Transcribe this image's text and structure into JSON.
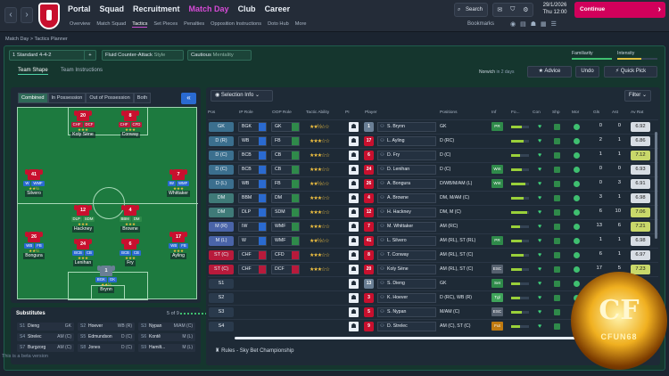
{
  "topbar": {
    "nav": [
      "Portal",
      "Squad",
      "Recruitment",
      "Match Day",
      "Club",
      "Career"
    ],
    "subnav": [
      "Overview",
      "Match Squad",
      "Tactics",
      "Set Pieces",
      "Penalties",
      "Opposition Instructions",
      "Doto Hub",
      "More"
    ],
    "search": "Search",
    "date": "29/1/2026",
    "day": "Thu",
    "time": "12:00",
    "continue": "Continue",
    "bookmarks": "Bookmarks"
  },
  "breadcrumb": "Match Day  >  Tactics Planner",
  "toolbar": {
    "tactic_num": "1",
    "formation": "Standard 4-4-2",
    "style_name": "Fluid Counter-Attack",
    "style_label": "Style",
    "mentality": "Cautious",
    "mentality_label": "Mentality",
    "familiarity": "Familiarity",
    "intensity": "Intensity"
  },
  "tabs": {
    "team_shape": "Team Shape",
    "team_instructions": "Team Instructions",
    "next_opp": "Norwich",
    "next_when": "in 2 days",
    "advice": "Advice",
    "undo": "Undo",
    "quick_pick": "Quick Pick"
  },
  "pitch_tabs": [
    "Combined",
    "In Possession",
    "Out of Possession",
    "Both"
  ],
  "players_pitch": [
    {
      "num": "20",
      "r1": "CHF",
      "r2": "DCF",
      "name": "Koly Sène"
    },
    {
      "num": "8",
      "r1": "CFD",
      "r2": "",
      "name": "Conway"
    },
    {
      "num": "41",
      "r1": "WMF",
      "r2": "",
      "name": "Silvero"
    },
    {
      "num": "7",
      "r1": "WMF",
      "r2": "",
      "name": "Whittaker"
    },
    {
      "num": "12",
      "r1": "DLP",
      "r2": "SDM",
      "name": "Hackney"
    },
    {
      "num": "4",
      "r1": "BBM",
      "r2": "",
      "name": "Browne"
    },
    {
      "num": "26",
      "r1": "WB",
      "r2": "FB",
      "name": "Bongura"
    },
    {
      "num": "24",
      "r1": "BCB",
      "r2": "CB",
      "name": "Lenihan"
    },
    {
      "num": "6",
      "r1": "BCB",
      "r2": "CB",
      "name": "Fry"
    },
    {
      "num": "17",
      "r1": "WB",
      "r2": "FB",
      "name": "Ayling"
    },
    {
      "num": "1",
      "r1": "BGK",
      "r2": "GK",
      "name": "Brynn"
    }
  ],
  "subs": {
    "title": "Substitutes",
    "count": "5 of 9",
    "items": [
      {
        "n": "S1",
        "name": "Dieng",
        "pos": "GK"
      },
      {
        "n": "S2",
        "name": "Hoever",
        "pos": "WB (R)"
      },
      {
        "n": "S3",
        "name": "Nypan",
        "pos": "M/AM (C)"
      },
      {
        "n": "S4",
        "name": "Strelec",
        "pos": "AM (C)"
      },
      {
        "n": "S5",
        "name": "Edmundson",
        "pos": "D (C)"
      },
      {
        "n": "S6",
        "name": "Kontě",
        "pos": "M (L)"
      },
      {
        "n": "S7",
        "name": "Burgzorg",
        "pos": "AM (C)"
      },
      {
        "n": "S8",
        "name": "Jones",
        "pos": "D (C)"
      },
      {
        "n": "S9",
        "name": "Hamilt...",
        "pos": "M (L)"
      }
    ]
  },
  "version": "This is a beta version",
  "selection": {
    "info": "Selection Info",
    "filter": "Filter"
  },
  "columns": [
    "Pos",
    "IP Role",
    "OOP Role",
    "Tactic Ability",
    "PI",
    "Player",
    "Positions",
    "Inf",
    "Fo...",
    "Con",
    "Shp",
    "Mor",
    "Gls",
    "Ast",
    "Av Rat"
  ],
  "rows": [
    {
      "pos": "GK",
      "ip": "BGK",
      "oop": "GK",
      "stars": "★★½☆☆",
      "num": "1",
      "player": "S. Brynn",
      "positions": "GK",
      "inf": "PR",
      "fm": 0.6,
      "gls": "0",
      "ast": "0",
      "avr": "6.92",
      "avc": "#d7dde4"
    },
    {
      "pos": "D (R)",
      "ip": "WB",
      "oop": "FB",
      "stars": "★★★☆☆",
      "num": "17",
      "player": "L. Ayling",
      "positions": "D (RC)",
      "inf": "",
      "fm": 0.7,
      "gls": "2",
      "ast": "1",
      "avr": "6.86",
      "avc": "#d7dde4"
    },
    {
      "pos": "D (C)",
      "ip": "BCB",
      "oop": "CB",
      "stars": "★★★☆☆",
      "num": "6",
      "player": "D. Fry",
      "positions": "D (C)",
      "inf": "",
      "fm": 0.5,
      "gls": "1",
      "ast": "1",
      "avr": "7.12",
      "avc": "#c9d86a"
    },
    {
      "pos": "D (C)",
      "ip": "BCB",
      "oop": "CB",
      "stars": "★★★☆☆",
      "num": "24",
      "player": "D. Lenihan",
      "positions": "D (C)",
      "inf": "Wnt",
      "fm": 0.6,
      "gls": "0",
      "ast": "0",
      "avr": "6.93",
      "avc": "#d7dde4"
    },
    {
      "pos": "D (L)",
      "ip": "WB",
      "oop": "FB",
      "stars": "★★½☆☆",
      "num": "26",
      "player": "A. Bongura",
      "positions": "D/WB/M/AM (L)",
      "inf": "Wnt",
      "fm": 0.8,
      "gls": "0",
      "ast": "3",
      "avr": "6.91",
      "avc": "#d7dde4"
    },
    {
      "pos": "DM",
      "ip": "BBM",
      "oop": "DM",
      "stars": "★★★☆☆",
      "num": "4",
      "player": "A. Browne",
      "positions": "DM, M/AM (C)",
      "inf": "",
      "fm": 0.7,
      "gls": "3",
      "ast": "1",
      "avr": "6.98",
      "avc": "#d7dde4"
    },
    {
      "pos": "DM",
      "ip": "DLP",
      "oop": "SDM",
      "stars": "★★★☆☆",
      "num": "12",
      "player": "H. Hackney",
      "positions": "DM, M (C)",
      "inf": "",
      "fm": 0.9,
      "gls": "6",
      "ast": "10",
      "avr": "7.06",
      "avc": "#c9d86a"
    },
    {
      "pos": "M (R)",
      "ip": "IW",
      "oop": "WMF",
      "stars": "★★★☆☆",
      "num": "7",
      "player": "M. Whittaker",
      "positions": "AM (RC)",
      "inf": "",
      "fm": 0.5,
      "gls": "13",
      "ast": "6",
      "avr": "7.21",
      "avc": "#c9d86a"
    },
    {
      "pos": "M (L)",
      "ip": "W",
      "oop": "WMF",
      "stars": "★★½☆☆",
      "num": "41",
      "player": "L. Silvero",
      "positions": "AM (RL), ST (RL)",
      "inf": "PR",
      "fm": 0.6,
      "gls": "1",
      "ast": "1",
      "avr": "6.98",
      "avc": "#d7dde4"
    },
    {
      "pos": "ST (C)",
      "ip": "CHF",
      "oop": "CFD",
      "stars": "★★★☆☆",
      "num": "8",
      "player": "T. Conway",
      "positions": "AM (RL), ST (C)",
      "inf": "",
      "fm": 0.7,
      "gls": "6",
      "ast": "1",
      "avr": "6.97",
      "avc": "#d7dde4"
    },
    {
      "pos": "ST (C)",
      "ip": "CHF",
      "oop": "DCF",
      "stars": "★★★☆☆",
      "num": "20",
      "player": "Koly Sène",
      "positions": "AM (RL), ST (C)",
      "inf": "ESC",
      "fm": 0.6,
      "gls": "17",
      "ast": "5",
      "avr": "7.23",
      "avc": "#c9d86a"
    },
    {
      "pos": "S1",
      "ip": "",
      "oop": "",
      "stars": "",
      "num": "13",
      "player": "S. Dieng",
      "positions": "GK",
      "inf": "Set",
      "fm": 0.5,
      "gls": "",
      "ast": "",
      "avr": "",
      "avc": ""
    },
    {
      "pos": "S2",
      "ip": "",
      "oop": "",
      "stars": "",
      "num": "3",
      "player": "K. Hoever",
      "positions": "D (RC), WB (R)",
      "inf": "Tgl",
      "fm": 0.5,
      "gls": "",
      "ast": "",
      "avr": "",
      "avc": ""
    },
    {
      "pos": "S3",
      "ip": "",
      "oop": "",
      "stars": "",
      "num": "5",
      "player": "S. Nypan",
      "positions": "M/AM (C)",
      "inf": "ESC",
      "fm": 0.6,
      "gls": "",
      "ast": "",
      "avr": "",
      "avc": ""
    },
    {
      "pos": "S4",
      "ip": "",
      "oop": "",
      "stars": "",
      "num": "9",
      "player": "D. Strelec",
      "positions": "AM (C), ST (C)",
      "inf": "Fut",
      "fm": 0.5,
      "gls": "",
      "ast": "",
      "avr": "",
      "avc": ""
    }
  ],
  "rules": "Rules - Sky Bet Championship",
  "logo": {
    "text": "CFUN68",
    "mark": "CF"
  }
}
